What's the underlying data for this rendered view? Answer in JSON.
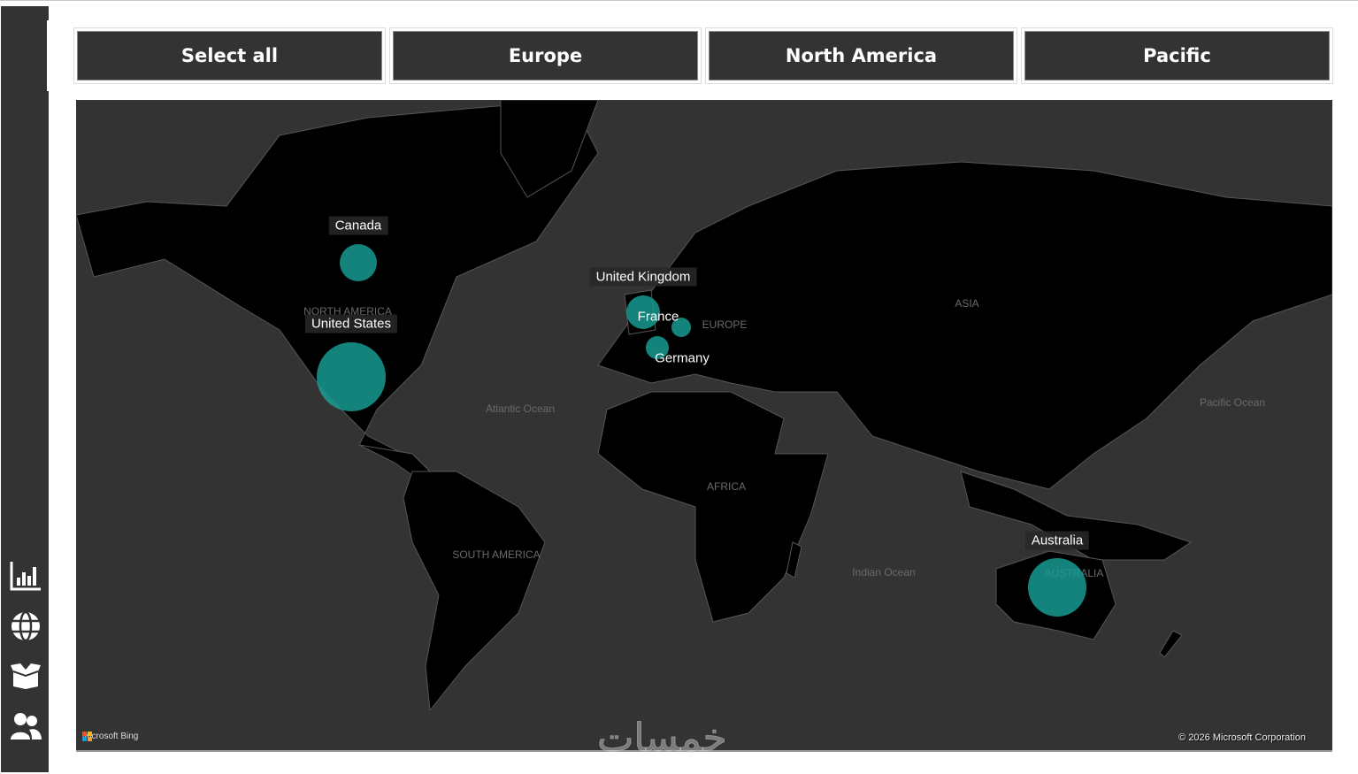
{
  "slicer": {
    "buttons": [
      "Select all",
      "Europe",
      "North America",
      "Pacific"
    ]
  },
  "sidebar": {
    "items": [
      {
        "icon": "bar-chart-icon"
      },
      {
        "icon": "globe-icon"
      },
      {
        "icon": "open-box-icon"
      },
      {
        "icon": "users-icon"
      }
    ]
  },
  "map": {
    "regions": [
      "NORTH AMERICA",
      "Atlantic Ocean",
      "SOUTH AMERICA",
      "AFRICA",
      "EUROPE",
      "ASIA",
      "Pacific Ocean",
      "Indian Ocean",
      "AUSTRALIA"
    ],
    "bubbles": [
      {
        "label": "Canada"
      },
      {
        "label": "United States"
      },
      {
        "label": "United Kingdom"
      },
      {
        "label": "France"
      },
      {
        "label": "Germany"
      },
      {
        "label": "Australia"
      }
    ],
    "bubble_color": "#18a096",
    "provider": "Microsoft Bing",
    "copyright": "© 2026 Microsoft Corporation"
  },
  "watermark": "خمسات"
}
